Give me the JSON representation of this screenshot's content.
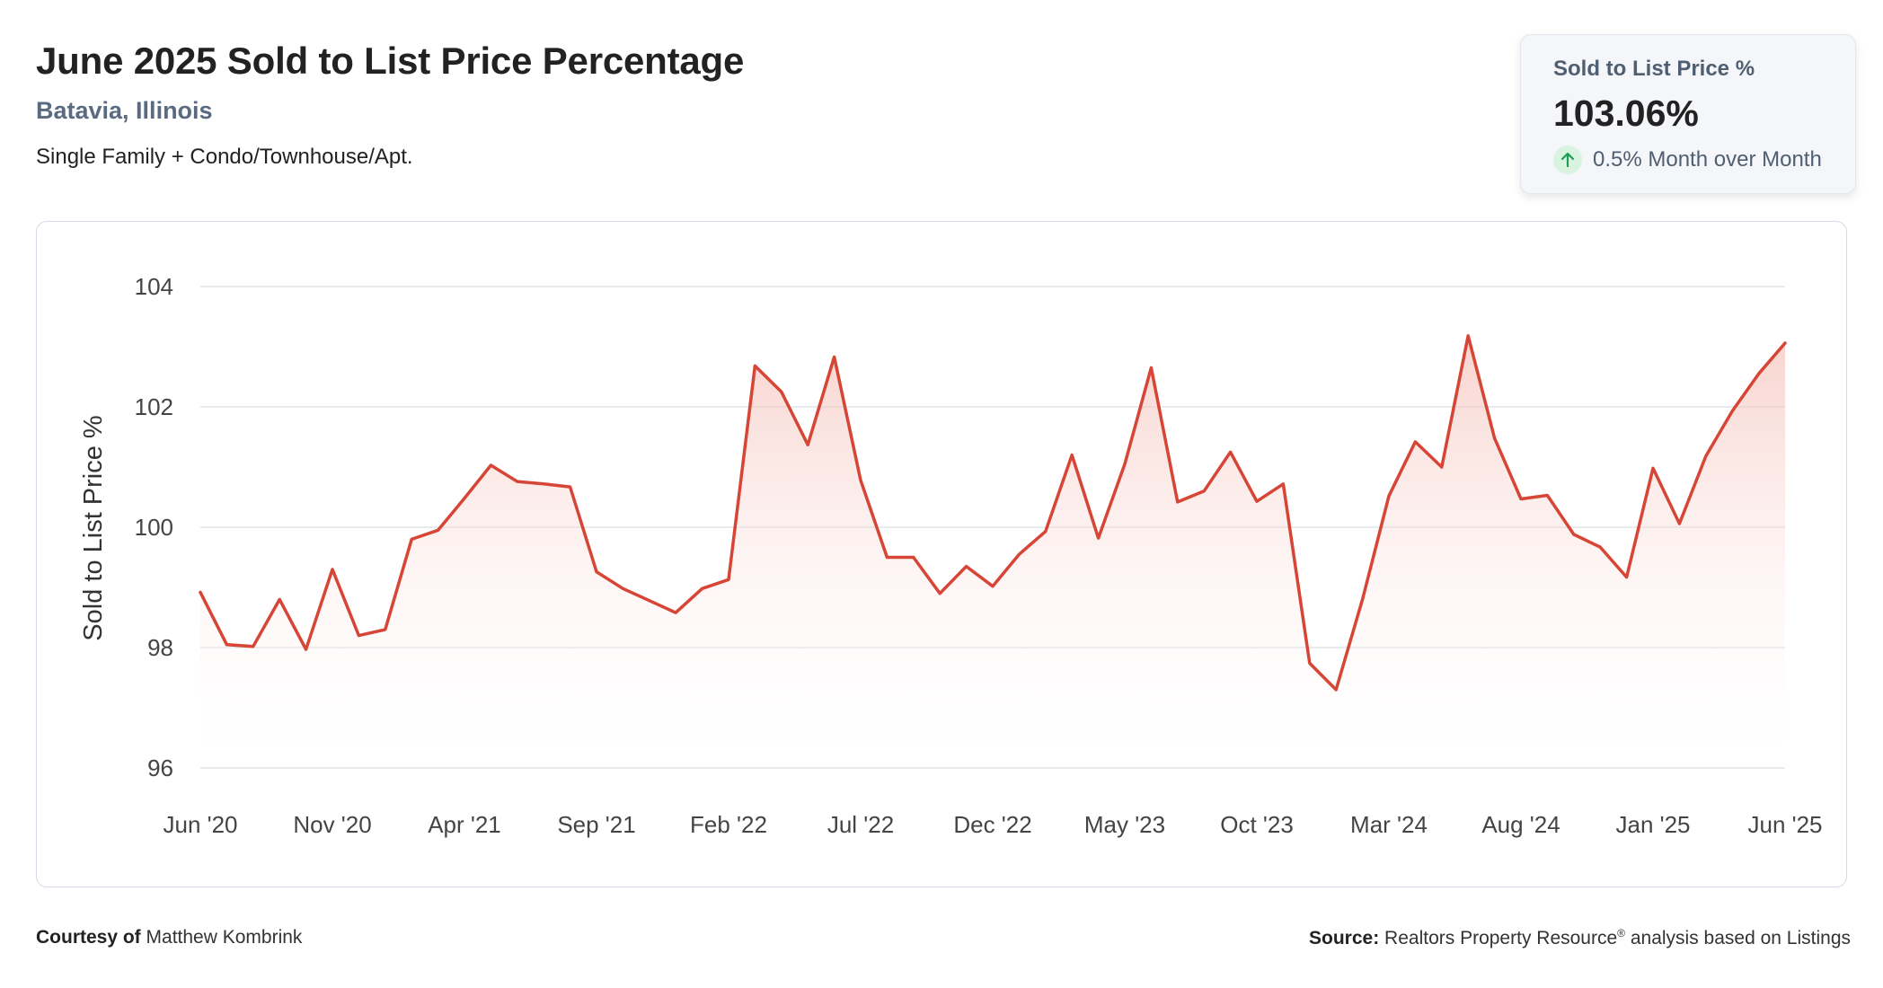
{
  "header": {
    "title": "June 2025 Sold to List Price Percentage",
    "location": "Batavia, Illinois",
    "property_type": "Single Family + Condo/Townhouse/Apt."
  },
  "stat_card": {
    "label": "Sold to List Price %",
    "value": "103.06%",
    "change_text": "0.5% Month over Month",
    "change_icon": "arrow-up-icon",
    "change_color": "#1f9d55"
  },
  "footer": {
    "courtesy_label": "Courtesy of",
    "courtesy_name": "Matthew Kombrink",
    "source_label": "Source:",
    "source_text": "Realtors Property Resource",
    "source_mark": "®",
    "source_suffix": "analysis based on Listings"
  },
  "colors": {
    "line": "#d64535",
    "fill_top": "#f3b6ad",
    "grid": "#e2e5ea",
    "axis_text": "#444444"
  },
  "chart_data": {
    "type": "area",
    "title": "June 2025 Sold to List Price Percentage",
    "ylabel": "Sold to List Price %",
    "xlabel": "",
    "ylim": [
      96,
      104
    ],
    "yticks": [
      96,
      98,
      100,
      102,
      104
    ],
    "grid": true,
    "x_tick_labels": [
      "Jun '20",
      "Nov '20",
      "Apr '21",
      "Sep '21",
      "Feb '22",
      "Jul '22",
      "Dec '22",
      "May '23",
      "Oct '23",
      "Mar '24",
      "Aug '24",
      "Jan '25",
      "Jun '25"
    ],
    "x_tick_step_months": 5,
    "x": [
      "2020-06",
      "2020-07",
      "2020-08",
      "2020-09",
      "2020-10",
      "2020-11",
      "2020-12",
      "2021-01",
      "2021-02",
      "2021-03",
      "2021-04",
      "2021-05",
      "2021-06",
      "2021-07",
      "2021-08",
      "2021-09",
      "2021-10",
      "2021-11",
      "2021-12",
      "2022-01",
      "2022-02",
      "2022-03",
      "2022-04",
      "2022-05",
      "2022-06",
      "2022-07",
      "2022-08",
      "2022-09",
      "2022-10",
      "2022-11",
      "2022-12",
      "2023-01",
      "2023-02",
      "2023-03",
      "2023-04",
      "2023-05",
      "2023-06",
      "2023-07",
      "2023-08",
      "2023-09",
      "2023-10",
      "2023-11",
      "2023-12",
      "2024-01",
      "2024-02",
      "2024-03",
      "2024-04",
      "2024-05",
      "2024-06",
      "2024-07",
      "2024-08",
      "2024-09",
      "2024-10",
      "2024-11",
      "2024-12",
      "2025-01",
      "2025-02",
      "2025-03",
      "2025-04",
      "2025-05",
      "2025-06"
    ],
    "series": [
      {
        "values": [
          98.92,
          98.05,
          98.02,
          98.8,
          97.97,
          99.3,
          98.2,
          98.3,
          99.8,
          99.95,
          100.48,
          101.03,
          100.76,
          100.72,
          100.67,
          99.26,
          98.98,
          98.78,
          98.58,
          98.98,
          99.13,
          102.68,
          102.25,
          101.37,
          102.83,
          100.78,
          99.5,
          99.5,
          98.9,
          99.35,
          99.02,
          99.55,
          99.93,
          101.2,
          99.82,
          101.05,
          102.65,
          100.42,
          100.6,
          101.25,
          100.43,
          100.72,
          97.74,
          97.3,
          98.8,
          100.52,
          101.42,
          101.0,
          103.18,
          101.48,
          100.47,
          100.53,
          99.88,
          99.67,
          99.17,
          100.98,
          100.06,
          101.18,
          101.93,
          102.55,
          103.06
        ]
      }
    ]
  }
}
